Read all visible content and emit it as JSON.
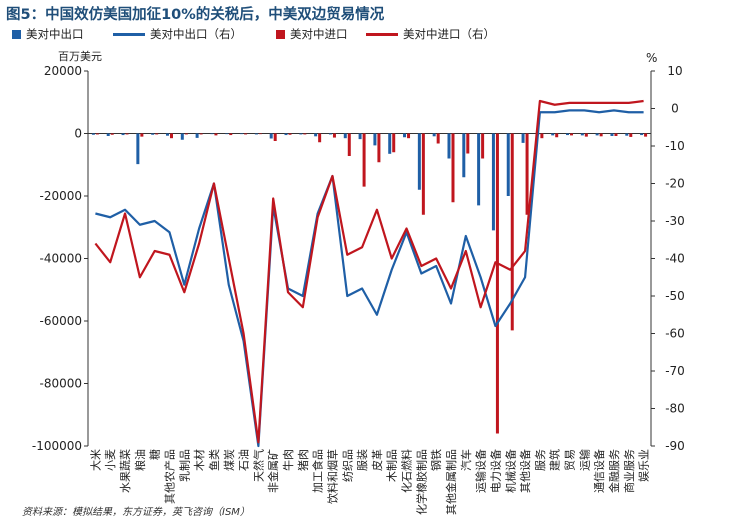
{
  "title": "图5：中国效仿美国加征10%的关税后，中美双边贸易情况",
  "legend": [
    {
      "label": "美对中出口",
      "kind": "bar",
      "color": "#1f5fa6"
    },
    {
      "label": "美对中出口（右）",
      "kind": "line",
      "color": "#1f5fa6"
    },
    {
      "label": "美对中进口",
      "kind": "bar",
      "color": "#c0161e"
    },
    {
      "label": "美对中进口（右）",
      "kind": "line",
      "color": "#c0161e"
    }
  ],
  "source": "资料来源：模拟结果，东方证券，英飞咨询（ISM）",
  "chart_data": {
    "type": "bar+line",
    "y_left_label": "百万美元",
    "y_right_label": "%",
    "y_left_range": [
      -100000,
      20000
    ],
    "y_left_ticks": [
      "20000",
      "0",
      "-20000",
      "-40000",
      "-60000",
      "-80000",
      "-100000"
    ],
    "y_right_range": [
      -90,
      10
    ],
    "y_right_ticks": [
      "10",
      "0",
      "-10",
      "-20",
      "-30",
      "-40",
      "-50",
      "-60",
      "-70",
      "-80",
      "-90"
    ],
    "categories": [
      "大米",
      "小麦",
      "水果蔬菜",
      "粮油",
      "糖",
      "其他农产品",
      "乳制品",
      "木材",
      "鱼类",
      "煤炭",
      "石油",
      "天然气",
      "非金属矿",
      "牛肉",
      "猪肉",
      "加工食品",
      "饮料和烟草",
      "纺织品",
      "服装",
      "皮革",
      "木制品",
      "化石燃料",
      "化学橡胶制品",
      "钢铁",
      "其他金属制品",
      "汽车",
      "运输设备",
      "电力设备",
      "机械设备",
      "其他设备",
      "服务",
      "建筑",
      "贸易",
      "运输",
      "通信设备",
      "金融服务",
      "商业服务",
      "娱乐业"
    ],
    "series": [
      {
        "name": "美对中出口",
        "type": "bar",
        "axis": "left",
        "values": [
          -400,
          -800,
          -500,
          -9800,
          -400,
          -700,
          -2000,
          -1400,
          -200,
          -200,
          -100,
          -300,
          -1600,
          -500,
          -300,
          -900,
          -300,
          -1500,
          -1800,
          -3800,
          -6500,
          -1200,
          -18000,
          -900,
          -8000,
          -14000,
          -23000,
          -31000,
          -20000,
          -3000,
          -300,
          -600,
          -500,
          -600,
          -600,
          -800,
          -700,
          -500
        ]
      },
      {
        "name": "美对中出口（右）",
        "type": "line",
        "axis": "right",
        "values": [
          -28,
          -29,
          -27,
          -31,
          -30,
          -33,
          -47,
          -32,
          -20,
          -47,
          -62,
          -90,
          -26,
          -48,
          -50,
          -28,
          -18,
          -50,
          -48,
          -55,
          -43,
          -33,
          -44,
          -42,
          -52,
          -34,
          -45,
          -58,
          -52,
          -45,
          -1,
          -1,
          -0.5,
          -0.5,
          -1,
          -0.5,
          -1,
          -1
        ]
      },
      {
        "name": "美对中进口",
        "type": "bar",
        "axis": "left",
        "values": [
          -300,
          -400,
          -300,
          -1000,
          -300,
          -1500,
          -300,
          -300,
          -600,
          -500,
          -300,
          -200,
          -2400,
          -400,
          -300,
          -2800,
          -1300,
          -7200,
          -17000,
          -9200,
          -6000,
          -1500,
          -26000,
          -3200,
          -22000,
          -6400,
          -8000,
          -96000,
          -63000,
          -26000,
          -1500,
          -1200,
          -600,
          -1000,
          -900,
          -800,
          -1100,
          -1000
        ]
      },
      {
        "name": "美对中进口（右）",
        "type": "line",
        "axis": "right",
        "values": [
          -36,
          -41,
          -28,
          -45,
          -38,
          -39,
          -49,
          -36,
          -20,
          -40,
          -60,
          -89,
          -24,
          -49,
          -53,
          -29,
          -18,
          -39,
          -37,
          -27,
          -40,
          -32,
          -42,
          -40,
          -48,
          -38,
          -53,
          -41,
          -43,
          -38,
          2,
          1,
          1.5,
          1.5,
          1.5,
          1.5,
          1.5,
          2
        ]
      }
    ]
  }
}
